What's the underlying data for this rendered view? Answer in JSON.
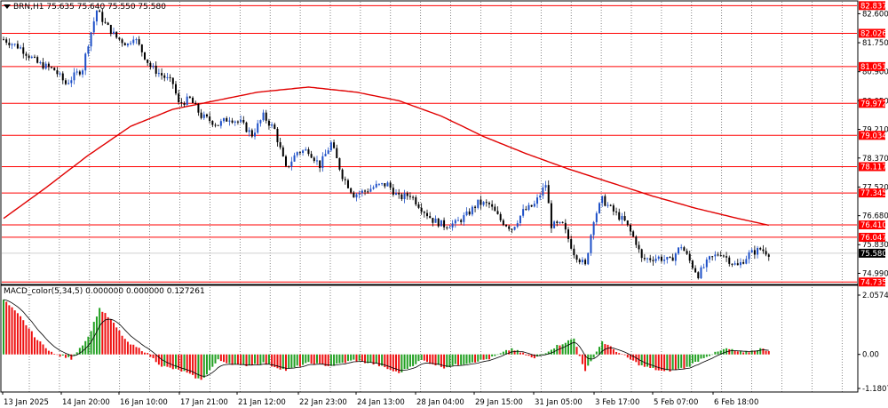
{
  "header": {
    "symbol_line": "BRN,H1  75.635 75.640 75.550 75.580",
    "indicator_line": "MACD_color(5,34,5) 0.000000 0.000000 0.127261"
  },
  "price_axis": {
    "ticks": [
      "82.600",
      "81.750",
      "80.900",
      "80.050",
      "79.210",
      "78.370",
      "77.520",
      "76.680",
      "75.830",
      "74.990"
    ],
    "current_price": "75.580"
  },
  "levels": [
    {
      "label": "82.837",
      "value": 82.837
    },
    {
      "label": "82.026",
      "value": 82.026
    },
    {
      "label": "81.051",
      "value": 81.051
    },
    {
      "label": "79.972",
      "value": 79.972
    },
    {
      "label": "79.034",
      "value": 79.034
    },
    {
      "label": "78.117",
      "value": 78.117
    },
    {
      "label": "77.345",
      "value": 77.345
    },
    {
      "label": "76.410",
      "value": 76.41
    },
    {
      "label": "76.047",
      "value": 76.047
    },
    {
      "label": "74.735",
      "value": 74.735
    }
  ],
  "macd_axis": {
    "ticks": [
      "2.057434",
      "0.00",
      "-1.180755"
    ]
  },
  "time_axis": {
    "labels": [
      "13 Jan 2025",
      "14 Jan 20:00",
      "16 Jan 10:00",
      "17 Jan 21:00",
      "21 Jan 12:00",
      "22 Jan 23:00",
      "24 Jan 13:00",
      "28 Jan 04:00",
      "29 Jan 15:00",
      "31 Jan 05:00",
      "3 Feb 17:00",
      "5 Feb 07:00",
      "6 Feb 18:00"
    ]
  },
  "colors": {
    "level_line": "#ff0000",
    "ma_line": "#e00000",
    "bull_candle": "#1e50c8",
    "bear_candle": "#000000",
    "macd_up": "#22a022",
    "macd_down": "#ee1111",
    "signal_line": "#000000",
    "grid": "#555555"
  },
  "chart_data": {
    "type": "candlestick",
    "symbol": "BRN",
    "timeframe": "H1",
    "ohlc_last": {
      "open": 75.635,
      "high": 75.64,
      "low": 75.55,
      "close": 75.58
    },
    "y_range": [
      74.69,
      82.95
    ],
    "close_path": [
      {
        "x": 0,
        "y": 81.85
      },
      {
        "x": 6,
        "y": 81.6
      },
      {
        "x": 12,
        "y": 81.15
      },
      {
        "x": 18,
        "y": 80.95
      },
      {
        "x": 22,
        "y": 80.55
      },
      {
        "x": 28,
        "y": 81.0
      },
      {
        "x": 30,
        "y": 81.75
      },
      {
        "x": 33,
        "y": 82.7
      },
      {
        "x": 36,
        "y": 82.3
      },
      {
        "x": 40,
        "y": 81.9
      },
      {
        "x": 44,
        "y": 81.7
      },
      {
        "x": 46,
        "y": 81.95
      },
      {
        "x": 52,
        "y": 81.05
      },
      {
        "x": 56,
        "y": 80.8
      },
      {
        "x": 60,
        "y": 80.55
      },
      {
        "x": 62,
        "y": 79.95
      },
      {
        "x": 66,
        "y": 80.1
      },
      {
        "x": 70,
        "y": 79.6
      },
      {
        "x": 76,
        "y": 79.35
      },
      {
        "x": 80,
        "y": 79.55
      },
      {
        "x": 84,
        "y": 79.4
      },
      {
        "x": 88,
        "y": 79.05
      },
      {
        "x": 92,
        "y": 79.6
      },
      {
        "x": 96,
        "y": 79.2
      },
      {
        "x": 100,
        "y": 78.05
      },
      {
        "x": 104,
        "y": 78.55
      },
      {
        "x": 108,
        "y": 78.6
      },
      {
        "x": 112,
        "y": 78.15
      },
      {
        "x": 116,
        "y": 78.8
      },
      {
        "x": 120,
        "y": 77.85
      },
      {
        "x": 124,
        "y": 77.3
      },
      {
        "x": 128,
        "y": 77.4
      },
      {
        "x": 132,
        "y": 77.55
      },
      {
        "x": 136,
        "y": 77.6
      },
      {
        "x": 140,
        "y": 77.2
      },
      {
        "x": 144,
        "y": 77.3
      },
      {
        "x": 148,
        "y": 76.9
      },
      {
        "x": 152,
        "y": 76.55
      },
      {
        "x": 156,
        "y": 76.4
      },
      {
        "x": 160,
        "y": 76.45
      },
      {
        "x": 164,
        "y": 76.7
      },
      {
        "x": 168,
        "y": 77.05
      },
      {
        "x": 172,
        "y": 77.0
      },
      {
        "x": 176,
        "y": 76.55
      },
      {
        "x": 180,
        "y": 76.3
      },
      {
        "x": 184,
        "y": 76.8
      },
      {
        "x": 188,
        "y": 77.0
      },
      {
        "x": 192,
        "y": 77.6
      },
      {
        "x": 194,
        "y": 76.4
      },
      {
        "x": 198,
        "y": 76.4
      },
      {
        "x": 202,
        "y": 75.6
      },
      {
        "x": 206,
        "y": 75.2
      },
      {
        "x": 209,
        "y": 76.6
      },
      {
        "x": 212,
        "y": 77.15
      },
      {
        "x": 216,
        "y": 76.8
      },
      {
        "x": 220,
        "y": 76.5
      },
      {
        "x": 224,
        "y": 75.9
      },
      {
        "x": 226,
        "y": 75.4
      },
      {
        "x": 232,
        "y": 75.45
      },
      {
        "x": 236,
        "y": 75.35
      },
      {
        "x": 240,
        "y": 75.8
      },
      {
        "x": 244,
        "y": 75.2
      },
      {
        "x": 246,
        "y": 74.95
      },
      {
        "x": 250,
        "y": 75.4
      },
      {
        "x": 254,
        "y": 75.6
      },
      {
        "x": 258,
        "y": 75.3
      },
      {
        "x": 260,
        "y": 75.2
      },
      {
        "x": 264,
        "y": 75.55
      },
      {
        "x": 268,
        "y": 75.7
      },
      {
        "x": 271,
        "y": 75.58
      }
    ],
    "moving_average": [
      {
        "x": 0,
        "y": 76.6
      },
      {
        "x": 15,
        "y": 77.5
      },
      {
        "x": 30,
        "y": 78.45
      },
      {
        "x": 45,
        "y": 79.3
      },
      {
        "x": 60,
        "y": 79.8
      },
      {
        "x": 75,
        "y": 80.05
      },
      {
        "x": 90,
        "y": 80.3
      },
      {
        "x": 108,
        "y": 80.45
      },
      {
        "x": 125,
        "y": 80.3
      },
      {
        "x": 140,
        "y": 80.05
      },
      {
        "x": 155,
        "y": 79.6
      },
      {
        "x": 170,
        "y": 79.0
      },
      {
        "x": 185,
        "y": 78.5
      },
      {
        "x": 200,
        "y": 78.05
      },
      {
        "x": 215,
        "y": 77.65
      },
      {
        "x": 230,
        "y": 77.25
      },
      {
        "x": 245,
        "y": 76.9
      },
      {
        "x": 260,
        "y": 76.6
      },
      {
        "x": 271,
        "y": 76.4
      }
    ],
    "macd_range": [
      -1.180755,
      2.057434
    ],
    "macd_hist": [
      {
        "x": 0,
        "y": 1.9
      },
      {
        "x": 6,
        "y": 1.3
      },
      {
        "x": 12,
        "y": 0.5
      },
      {
        "x": 18,
        "y": 0.0
      },
      {
        "x": 24,
        "y": -0.15
      },
      {
        "x": 30,
        "y": 0.6
      },
      {
        "x": 34,
        "y": 1.6
      },
      {
        "x": 38,
        "y": 1.2
      },
      {
        "x": 44,
        "y": 0.4
      },
      {
        "x": 50,
        "y": 0.1
      },
      {
        "x": 56,
        "y": -0.4
      },
      {
        "x": 64,
        "y": -0.6
      },
      {
        "x": 70,
        "y": -0.9
      },
      {
        "x": 76,
        "y": -0.2
      },
      {
        "x": 84,
        "y": -0.4
      },
      {
        "x": 92,
        "y": -0.3
      },
      {
        "x": 100,
        "y": -0.55
      },
      {
        "x": 108,
        "y": -0.3
      },
      {
        "x": 116,
        "y": -0.4
      },
      {
        "x": 124,
        "y": -0.2
      },
      {
        "x": 132,
        "y": -0.35
      },
      {
        "x": 140,
        "y": -0.65
      },
      {
        "x": 148,
        "y": -0.2
      },
      {
        "x": 156,
        "y": -0.45
      },
      {
        "x": 164,
        "y": -0.3
      },
      {
        "x": 172,
        "y": -0.15
      },
      {
        "x": 180,
        "y": 0.2
      },
      {
        "x": 188,
        "y": -0.15
      },
      {
        "x": 196,
        "y": 0.3
      },
      {
        "x": 202,
        "y": 0.55
      },
      {
        "x": 206,
        "y": -0.6
      },
      {
        "x": 212,
        "y": 0.45
      },
      {
        "x": 218,
        "y": 0.05
      },
      {
        "x": 226,
        "y": -0.4
      },
      {
        "x": 234,
        "y": -0.6
      },
      {
        "x": 242,
        "y": -0.45
      },
      {
        "x": 248,
        "y": -0.1
      },
      {
        "x": 256,
        "y": 0.2
      },
      {
        "x": 262,
        "y": 0.05
      },
      {
        "x": 268,
        "y": 0.2
      },
      {
        "x": 271,
        "y": 0.13
      }
    ]
  }
}
